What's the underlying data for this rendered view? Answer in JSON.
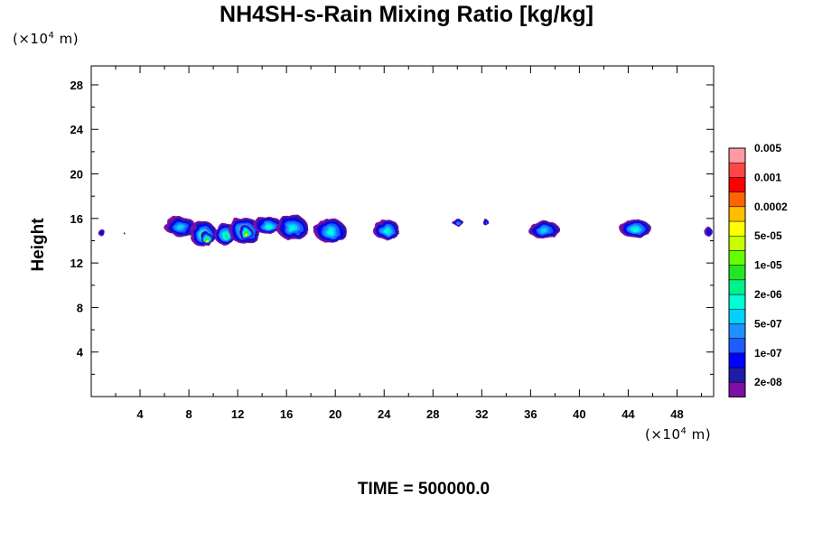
{
  "chart_data": {
    "type": "heatmap",
    "title": "NH4SH-s-Rain Mixing Ratio [kg/kg]",
    "ylabel": "Height",
    "x_unit": {
      "prefix": "(×10",
      "exp": "4",
      "suffix": " m)"
    },
    "y_unit": {
      "prefix": "(×10",
      "exp": "4",
      "suffix": " m)"
    },
    "xlim": [
      0,
      51
    ],
    "ylim": [
      0,
      29.7
    ],
    "x_ticks": [
      "4",
      "8",
      "12",
      "16",
      "20",
      "24",
      "28",
      "32",
      "36",
      "40",
      "44",
      "48"
    ],
    "y_ticks": [
      "4",
      "8",
      "12",
      "16",
      "20",
      "24",
      "28"
    ],
    "colorbar": {
      "colors": [
        "#7b0fa6",
        "#1c1ca4",
        "#0000ff",
        "#1e5cff",
        "#1e90ff",
        "#00d2ff",
        "#00ffd2",
        "#00f08c",
        "#23e623",
        "#64ff00",
        "#c8ff00",
        "#ffff00",
        "#ffbe00",
        "#ff6400",
        "#ff0000",
        "#ff4646",
        "#ff9aa0"
      ],
      "labels": [
        "2e-08",
        "1e-07",
        "5e-07",
        "2e-06",
        "1e-05",
        "5e-05",
        "0.0002",
        "0.001",
        "0.005"
      ]
    },
    "blobs": [
      {
        "x": 0.9,
        "y": 14.7,
        "w": 0.6,
        "h": 0.6,
        "level": 2
      },
      {
        "x": 2.7,
        "y": 14.7,
        "w": 0.1,
        "h": 0.2,
        "level": 1
      },
      {
        "x": 7.3,
        "y": 15.3,
        "w": 2.6,
        "h": 1.7,
        "level": 5
      },
      {
        "x": 9.2,
        "y": 14.6,
        "w": 2.2,
        "h": 2.3,
        "level": 7
      },
      {
        "x": 9.5,
        "y": 14.2,
        "w": 0.9,
        "h": 1.1,
        "level": 11
      },
      {
        "x": 11.0,
        "y": 14.6,
        "w": 1.8,
        "h": 2.0,
        "level": 7
      },
      {
        "x": 12.6,
        "y": 14.9,
        "w": 2.6,
        "h": 2.4,
        "level": 7
      },
      {
        "x": 12.7,
        "y": 14.7,
        "w": 1.1,
        "h": 1.2,
        "level": 11
      },
      {
        "x": 14.5,
        "y": 15.4,
        "w": 2.4,
        "h": 1.6,
        "level": 6
      },
      {
        "x": 16.5,
        "y": 15.2,
        "w": 2.6,
        "h": 2.2,
        "level": 6
      },
      {
        "x": 19.6,
        "y": 14.9,
        "w": 2.6,
        "h": 2.2,
        "level": 6
      },
      {
        "x": 24.2,
        "y": 15.0,
        "w": 2.2,
        "h": 1.8,
        "level": 6
      },
      {
        "x": 30.1,
        "y": 15.6,
        "w": 0.9,
        "h": 0.6,
        "level": 4
      },
      {
        "x": 32.4,
        "y": 15.6,
        "w": 0.4,
        "h": 0.6,
        "level": 3
      },
      {
        "x": 37.1,
        "y": 15.0,
        "w": 2.6,
        "h": 1.6,
        "level": 5
      },
      {
        "x": 44.6,
        "y": 15.1,
        "w": 2.6,
        "h": 1.6,
        "level": 6
      },
      {
        "x": 50.6,
        "y": 14.8,
        "w": 0.7,
        "h": 0.8,
        "level": 2
      }
    ]
  },
  "footer": "TIME = 500000.0"
}
